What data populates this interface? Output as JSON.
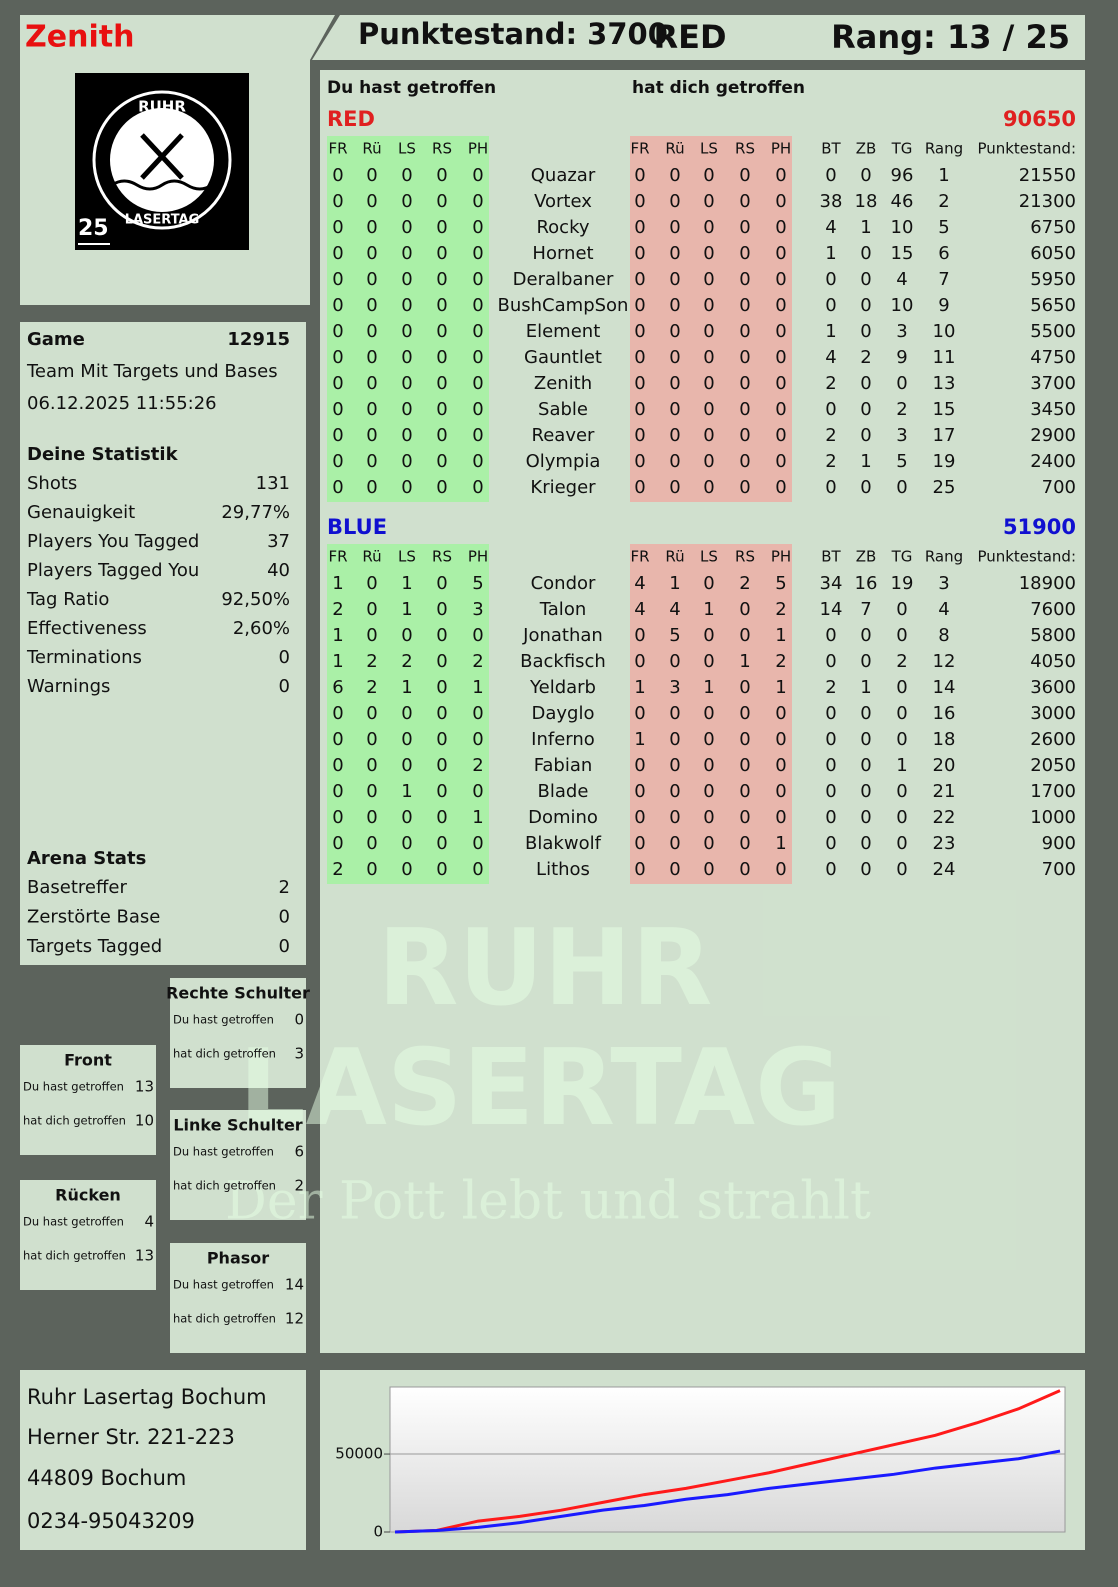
{
  "header": {
    "name": "Zenith",
    "score": "Punktestand: 3700",
    "team": "RED",
    "rank": "Rang: 13 / 25"
  },
  "logo": {
    "top": "RUHR",
    "bottom": "LASERTAG",
    "number": "25"
  },
  "game": {
    "label": "Game",
    "id": "12915",
    "mode": "Team Mit Targets und Bases",
    "date": "06.12.2025 11:55:26"
  },
  "stats": {
    "title": "Deine Statistik",
    "rows": [
      [
        "Shots",
        131
      ],
      [
        "Genauigkeit",
        "29,77%"
      ],
      [
        "Players You Tagged",
        37
      ],
      [
        "Players Tagged You",
        40
      ],
      [
        "Tag Ratio",
        "92,50%"
      ],
      [
        "Effectiveness",
        "2,60%"
      ],
      [
        "Terminations",
        0
      ],
      [
        "Warnings",
        0
      ]
    ]
  },
  "arena": {
    "title": "Arena Stats",
    "rows": [
      [
        "Basetreffer",
        2
      ],
      [
        "Zerstörte Base",
        0
      ],
      [
        "Targets Tagged",
        0
      ]
    ]
  },
  "zones": [
    {
      "title": "Rechte Schulter",
      "hit_label": "Du hast getroffen",
      "hit": 0,
      "got_label": "hat dich getroffen",
      "got": 3
    },
    {
      "title": "Front",
      "hit_label": "Du hast getroffen",
      "hit": 13,
      "got_label": "hat dich getroffen",
      "got": 10
    },
    {
      "title": "Linke Schulter",
      "hit_label": "Du hast getroffen",
      "hit": 6,
      "got_label": "hat dich getroffen",
      "got": 2
    },
    {
      "title": "Rücken",
      "hit_label": "Du hast getroffen",
      "hit": 4,
      "got_label": "hat dich getroffen",
      "got": 13
    },
    {
      "title": "Phasor",
      "hit_label": "Du hast getroffen",
      "hit": 14,
      "got_label": "hat dich getroffen",
      "got": 12
    }
  ],
  "address": [
    "Ruhr Lasertag Bochum",
    "Herner Str. 221-223",
    "44809 Bochum",
    "0234-95043209"
  ],
  "watermark": {
    "line1": "RUHR",
    "line2": "LASERTAG",
    "slogan": "Der Pott lebt und strahlt"
  },
  "table": {
    "header_left": "Du hast getroffen",
    "header_right": "hat dich getroffen",
    "hit_columns": [
      "FR",
      "Rü",
      "LS",
      "RS",
      "PH"
    ],
    "got_columns": [
      "FR",
      "Rü",
      "LS",
      "RS",
      "PH"
    ],
    "extra_columns": [
      "BT",
      "ZB",
      "TG",
      "Rang",
      "Punktestand:"
    ],
    "teams": [
      {
        "name": "RED",
        "color": "#e02020",
        "total": "90650",
        "rows": [
          {
            "name": "Quazar",
            "hit": [
              0,
              0,
              0,
              0,
              0
            ],
            "got": [
              0,
              0,
              0,
              0,
              0
            ],
            "bt": 0,
            "zb": 0,
            "tg": 96,
            "rank": 1,
            "score": 21550
          },
          {
            "name": "Vortex",
            "hit": [
              0,
              0,
              0,
              0,
              0
            ],
            "got": [
              0,
              0,
              0,
              0,
              0
            ],
            "bt": 38,
            "zb": 18,
            "tg": 46,
            "rank": 2,
            "score": 21300
          },
          {
            "name": "Rocky",
            "hit": [
              0,
              0,
              0,
              0,
              0
            ],
            "got": [
              0,
              0,
              0,
              0,
              0
            ],
            "bt": 4,
            "zb": 1,
            "tg": 10,
            "rank": 5,
            "score": 6750
          },
          {
            "name": "Hornet",
            "hit": [
              0,
              0,
              0,
              0,
              0
            ],
            "got": [
              0,
              0,
              0,
              0,
              0
            ],
            "bt": 1,
            "zb": 0,
            "tg": 15,
            "rank": 6,
            "score": 6050
          },
          {
            "name": "Deralbaner",
            "hit": [
              0,
              0,
              0,
              0,
              0
            ],
            "got": [
              0,
              0,
              0,
              0,
              0
            ],
            "bt": 0,
            "zb": 0,
            "tg": 4,
            "rank": 7,
            "score": 5950
          },
          {
            "name": "BushCampSon",
            "hit": [
              0,
              0,
              0,
              0,
              0
            ],
            "got": [
              0,
              0,
              0,
              0,
              0
            ],
            "bt": 0,
            "zb": 0,
            "tg": 10,
            "rank": 9,
            "score": 5650
          },
          {
            "name": "Element",
            "hit": [
              0,
              0,
              0,
              0,
              0
            ],
            "got": [
              0,
              0,
              0,
              0,
              0
            ],
            "bt": 1,
            "zb": 0,
            "tg": 3,
            "rank": 10,
            "score": 5500
          },
          {
            "name": "Gauntlet",
            "hit": [
              0,
              0,
              0,
              0,
              0
            ],
            "got": [
              0,
              0,
              0,
              0,
              0
            ],
            "bt": 4,
            "zb": 2,
            "tg": 9,
            "rank": 11,
            "score": 4750
          },
          {
            "name": "Zenith",
            "hit": [
              0,
              0,
              0,
              0,
              0
            ],
            "got": [
              0,
              0,
              0,
              0,
              0
            ],
            "bt": 2,
            "zb": 0,
            "tg": 0,
            "rank": 13,
            "score": 3700
          },
          {
            "name": "Sable",
            "hit": [
              0,
              0,
              0,
              0,
              0
            ],
            "got": [
              0,
              0,
              0,
              0,
              0
            ],
            "bt": 0,
            "zb": 0,
            "tg": 2,
            "rank": 15,
            "score": 3450
          },
          {
            "name": "Reaver",
            "hit": [
              0,
              0,
              0,
              0,
              0
            ],
            "got": [
              0,
              0,
              0,
              0,
              0
            ],
            "bt": 2,
            "zb": 0,
            "tg": 3,
            "rank": 17,
            "score": 2900
          },
          {
            "name": "Olympia",
            "hit": [
              0,
              0,
              0,
              0,
              0
            ],
            "got": [
              0,
              0,
              0,
              0,
              0
            ],
            "bt": 2,
            "zb": 1,
            "tg": 5,
            "rank": 19,
            "score": 2400
          },
          {
            "name": "Krieger",
            "hit": [
              0,
              0,
              0,
              0,
              0
            ],
            "got": [
              0,
              0,
              0,
              0,
              0
            ],
            "bt": 0,
            "zb": 0,
            "tg": 0,
            "rank": 25,
            "score": 700
          }
        ]
      },
      {
        "name": "BLUE",
        "color": "#1010d0",
        "total": "51900",
        "rows": [
          {
            "name": "Condor",
            "hit": [
              1,
              0,
              1,
              0,
              5
            ],
            "got": [
              4,
              1,
              0,
              2,
              5
            ],
            "bt": 34,
            "zb": 16,
            "tg": 19,
            "rank": 3,
            "score": 18900
          },
          {
            "name": "Talon",
            "hit": [
              2,
              0,
              1,
              0,
              3
            ],
            "got": [
              4,
              4,
              1,
              0,
              2
            ],
            "bt": 14,
            "zb": 7,
            "tg": 0,
            "rank": 4,
            "score": 7600
          },
          {
            "name": "Jonathan",
            "hit": [
              1,
              0,
              0,
              0,
              0
            ],
            "got": [
              0,
              5,
              0,
              0,
              1
            ],
            "bt": 0,
            "zb": 0,
            "tg": 0,
            "rank": 8,
            "score": 5800
          },
          {
            "name": "Backfisch",
            "hit": [
              1,
              2,
              2,
              0,
              2
            ],
            "got": [
              0,
              0,
              0,
              1,
              2
            ],
            "bt": 0,
            "zb": 0,
            "tg": 2,
            "rank": 12,
            "score": 4050
          },
          {
            "name": "Yeldarb",
            "hit": [
              6,
              2,
              1,
              0,
              1
            ],
            "got": [
              1,
              3,
              1,
              0,
              1
            ],
            "bt": 2,
            "zb": 1,
            "tg": 0,
            "rank": 14,
            "score": 3600
          },
          {
            "name": "Dayglo",
            "hit": [
              0,
              0,
              0,
              0,
              0
            ],
            "got": [
              0,
              0,
              0,
              0,
              0
            ],
            "bt": 0,
            "zb": 0,
            "tg": 0,
            "rank": 16,
            "score": 3000
          },
          {
            "name": "Inferno",
            "hit": [
              0,
              0,
              0,
              0,
              0
            ],
            "got": [
              1,
              0,
              0,
              0,
              0
            ],
            "bt": 0,
            "zb": 0,
            "tg": 0,
            "rank": 18,
            "score": 2600
          },
          {
            "name": "Fabian",
            "hit": [
              0,
              0,
              0,
              0,
              2
            ],
            "got": [
              0,
              0,
              0,
              0,
              0
            ],
            "bt": 0,
            "zb": 0,
            "tg": 1,
            "rank": 20,
            "score": 2050
          },
          {
            "name": "Blade",
            "hit": [
              0,
              0,
              1,
              0,
              0
            ],
            "got": [
              0,
              0,
              0,
              0,
              0
            ],
            "bt": 0,
            "zb": 0,
            "tg": 0,
            "rank": 21,
            "score": 1700
          },
          {
            "name": "Domino",
            "hit": [
              0,
              0,
              0,
              0,
              1
            ],
            "got": [
              0,
              0,
              0,
              0,
              0
            ],
            "bt": 0,
            "zb": 0,
            "tg": 0,
            "rank": 22,
            "score": 1000
          },
          {
            "name": "Blakwolf",
            "hit": [
              0,
              0,
              0,
              0,
              0
            ],
            "got": [
              0,
              0,
              0,
              0,
              1
            ],
            "bt": 0,
            "zb": 0,
            "tg": 0,
            "rank": 23,
            "score": 900
          },
          {
            "name": "Lithos",
            "hit": [
              2,
              0,
              0,
              0,
              0
            ],
            "got": [
              0,
              0,
              0,
              0,
              0
            ],
            "bt": 0,
            "zb": 0,
            "tg": 0,
            "rank": 24,
            "score": 700
          }
        ]
      }
    ]
  },
  "chart_data": {
    "type": "line",
    "ylim": [
      0,
      93000
    ],
    "yticks": [
      0,
      50000
    ],
    "grid": true,
    "series": [
      {
        "color": "#ff1a1a",
        "values": [
          0,
          1000,
          7000,
          10000,
          14000,
          19000,
          24000,
          28000,
          33000,
          38000,
          44000,
          50000,
          56000,
          62000,
          70000,
          79000,
          90650
        ]
      },
      {
        "color": "#1a1aff",
        "values": [
          0,
          1000,
          3000,
          6000,
          10000,
          14000,
          17000,
          21000,
          24000,
          28000,
          31000,
          34000,
          37000,
          41000,
          44000,
          47000,
          51900
        ]
      }
    ]
  }
}
